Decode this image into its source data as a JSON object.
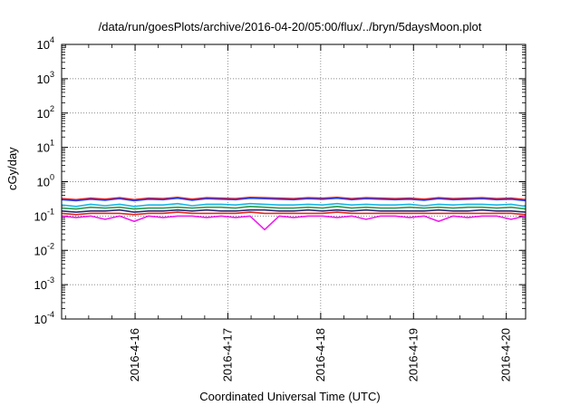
{
  "chart_data": {
    "type": "line",
    "title": "/data/run/goesPlots/archive/2016-04-20/05:00/flux/../bryn/5daysMoon.plot",
    "xlabel": "Coordinated Universal Time (UTC)",
    "ylabel": "cGy/day",
    "y_scale": "log",
    "ylim": [
      0.0001,
      10000
    ],
    "y_ticks": [
      {
        "value": 0.0001,
        "base": "10",
        "exp": "-4"
      },
      {
        "value": 0.001,
        "base": "10",
        "exp": "-3"
      },
      {
        "value": 0.01,
        "base": "10",
        "exp": "-2"
      },
      {
        "value": 0.1,
        "base": "10",
        "exp": "-1"
      },
      {
        "value": 1,
        "base": "10",
        "exp": "0"
      },
      {
        "value": 10,
        "base": "10",
        "exp": "1"
      },
      {
        "value": 100,
        "base": "10",
        "exp": "2"
      },
      {
        "value": 1000,
        "base": "10",
        "exp": "3"
      },
      {
        "value": 10000,
        "base": "10",
        "exp": "4"
      }
    ],
    "xlim": [
      "2016-04-15 05:00",
      "2016-04-20 05:00"
    ],
    "x_ticks": [
      "2016-4-16",
      "2016-4-17",
      "2016-4-18",
      "2016-4-19",
      "2016-4-20"
    ],
    "grid": true,
    "series": [
      {
        "color": "#e8141c",
        "values": [
          0.32,
          0.3,
          0.33,
          0.31,
          0.34,
          0.3,
          0.33,
          0.32,
          0.35,
          0.31,
          0.34,
          0.33,
          0.32,
          0.35,
          0.34,
          0.33,
          0.32,
          0.34,
          0.33,
          0.35,
          0.32,
          0.34,
          0.33,
          0.32,
          0.33,
          0.31,
          0.34,
          0.32,
          0.33,
          0.34,
          0.32,
          0.33,
          0.3
        ]
      },
      {
        "color": "#2c3ee8",
        "values": [
          0.3,
          0.28,
          0.31,
          0.29,
          0.32,
          0.28,
          0.31,
          0.3,
          0.33,
          0.29,
          0.32,
          0.31,
          0.3,
          0.33,
          0.32,
          0.31,
          0.3,
          0.32,
          0.31,
          0.33,
          0.3,
          0.32,
          0.31,
          0.3,
          0.31,
          0.29,
          0.32,
          0.3,
          0.31,
          0.32,
          0.3,
          0.31,
          0.28
        ]
      },
      {
        "color": "#19b7e6",
        "values": [
          0.21,
          0.19,
          0.22,
          0.2,
          0.22,
          0.19,
          0.21,
          0.21,
          0.23,
          0.2,
          0.22,
          0.22,
          0.21,
          0.23,
          0.22,
          0.21,
          0.21,
          0.22,
          0.21,
          0.23,
          0.21,
          0.22,
          0.21,
          0.21,
          0.22,
          0.2,
          0.22,
          0.21,
          0.22,
          0.22,
          0.21,
          0.22,
          0.19
        ]
      },
      {
        "color": "#2f9a4a",
        "values": [
          0.17,
          0.16,
          0.18,
          0.17,
          0.18,
          0.16,
          0.17,
          0.17,
          0.18,
          0.17,
          0.18,
          0.18,
          0.17,
          0.19,
          0.18,
          0.17,
          0.17,
          0.18,
          0.17,
          0.19,
          0.17,
          0.18,
          0.17,
          0.17,
          0.18,
          0.17,
          0.18,
          0.17,
          0.18,
          0.18,
          0.17,
          0.18,
          0.16
        ]
      },
      {
        "color": "#2a2a7a",
        "values": [
          0.14,
          0.13,
          0.14,
          0.14,
          0.15,
          0.13,
          0.14,
          0.14,
          0.15,
          0.14,
          0.15,
          0.14,
          0.14,
          0.15,
          0.15,
          0.14,
          0.14,
          0.15,
          0.14,
          0.15,
          0.14,
          0.15,
          0.14,
          0.14,
          0.14,
          0.14,
          0.15,
          0.14,
          0.14,
          0.15,
          0.14,
          0.14,
          0.13
        ]
      },
      {
        "color": "#e0281e",
        "values": [
          0.12,
          0.11,
          0.12,
          0.12,
          0.12,
          0.11,
          0.12,
          0.12,
          0.13,
          0.12,
          0.12,
          0.12,
          0.12,
          0.13,
          0.12,
          0.12,
          0.12,
          0.12,
          0.12,
          0.13,
          0.12,
          0.12,
          0.12,
          0.12,
          0.12,
          0.12,
          0.12,
          0.12,
          0.12,
          0.12,
          0.12,
          0.12,
          0.11
        ]
      },
      {
        "color": "#f01cf0",
        "values": [
          0.1,
          0.09,
          0.1,
          0.08,
          0.1,
          0.07,
          0.1,
          0.09,
          0.1,
          0.1,
          0.09,
          0.1,
          0.09,
          0.1,
          0.04,
          0.1,
          0.09,
          0.1,
          0.1,
          0.09,
          0.1,
          0.08,
          0.1,
          0.1,
          0.09,
          0.1,
          0.07,
          0.1,
          0.09,
          0.1,
          0.1,
          0.08,
          0.1
        ]
      }
    ]
  }
}
